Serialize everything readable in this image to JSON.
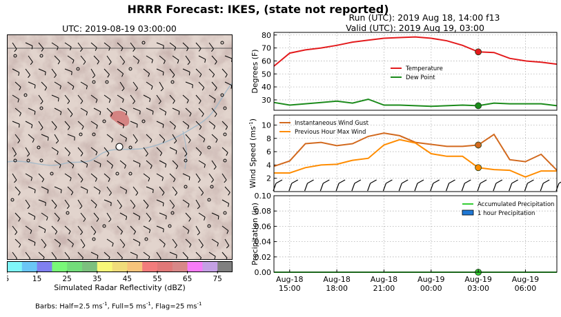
{
  "figure": {
    "suptitle": "HRRR Forecast: IKES, (state not reported)",
    "run_line": "Run (UTC): 2019 Aug 18, 14:00 f13",
    "valid_line": "Valid (UTC): 2019 Aug 19, 03:00"
  },
  "map": {
    "title": "UTC: 2019-08-19 03:00:00",
    "colorbar_label": "Simulated Radar Reflectivity (dBZ)",
    "colorbar_ticks": [
      "5",
      "15",
      "25",
      "35",
      "45",
      "55",
      "65",
      "75"
    ],
    "colorbar_colors": [
      "#7ff6f9",
      "#6ac6f6",
      "#8080f0",
      "#78f878",
      "#72dc7a",
      "#7cc07e",
      "#f8f878",
      "#f0dc7a",
      "#f7c47b",
      "#f27c7c",
      "#e07878",
      "#d88888",
      "#f87cf8",
      "#c4a0e4",
      "#808080"
    ],
    "station_marker": "white-circle",
    "footer_prefix": "Barbs: Half=2.5 ms",
    "footer_mid": ", Full=5 ms",
    "footer_mid2": ", Flag=25 ms",
    "footer_exp": "-1"
  },
  "chart_data": [
    {
      "type": "line",
      "ylabel": "Degrees (F)",
      "ylim": [
        22,
        82
      ],
      "yticks": [
        "30",
        "40",
        "50",
        "60",
        "70",
        "80"
      ],
      "grid": true,
      "legend_position": "center",
      "x": [
        "Aug-18 14:00",
        "Aug-18 15:00",
        "Aug-18 16:00",
        "Aug-18 17:00",
        "Aug-18 18:00",
        "Aug-18 19:00",
        "Aug-18 20:00",
        "Aug-18 21:00",
        "Aug-18 22:00",
        "Aug-18 23:00",
        "Aug-19 00:00",
        "Aug-19 01:00",
        "Aug-19 02:00",
        "Aug-19 03:00",
        "Aug-19 04:00",
        "Aug-19 05:00",
        "Aug-19 06:00",
        "Aug-19 07:00",
        "Aug-19 08:00"
      ],
      "series": [
        {
          "name": "Temperature",
          "color": "#e31a1c",
          "values": [
            56,
            66,
            68.5,
            70,
            72,
            74.5,
            76,
            77.5,
            78,
            78.5,
            77.5,
            75.5,
            72,
            67,
            66.5,
            62,
            60,
            59,
            57.5
          ]
        },
        {
          "name": "Dew Point",
          "color": "#1a8a1a",
          "values": [
            28,
            26,
            27,
            28,
            29,
            27.5,
            30.5,
            26,
            26,
            25.5,
            25,
            25.5,
            26,
            25.5,
            27.5,
            27,
            27,
            27,
            25.5
          ]
        }
      ],
      "highlight_x": "Aug-19 03:00"
    },
    {
      "type": "line",
      "ylabel": "Wind Speed (ms",
      "ylabel_exp": "-1",
      "ylim": [
        0,
        11.5
      ],
      "yticks": [
        "2",
        "4",
        "6",
        "8",
        "10"
      ],
      "grid": true,
      "legend_position": "top-left",
      "x": [
        "Aug-18 14:00",
        "Aug-18 15:00",
        "Aug-18 16:00",
        "Aug-18 17:00",
        "Aug-18 18:00",
        "Aug-18 19:00",
        "Aug-18 20:00",
        "Aug-18 21:00",
        "Aug-18 22:00",
        "Aug-18 23:00",
        "Aug-19 00:00",
        "Aug-19 01:00",
        "Aug-19 02:00",
        "Aug-19 03:00",
        "Aug-19 04:00",
        "Aug-19 05:00",
        "Aug-19 06:00",
        "Aug-19 07:00",
        "Aug-19 08:00"
      ],
      "series": [
        {
          "name": "Instantaneous Wind Gust",
          "color": "#d2691e",
          "values": [
            3.8,
            4.6,
            7.2,
            7.4,
            6.9,
            7.2,
            8.3,
            8.8,
            8.4,
            7.4,
            7.1,
            6.8,
            6.8,
            7.0,
            8.6,
            4.8,
            4.5,
            5.6,
            3.2
          ]
        },
        {
          "name": "Previous Hour Max Wind",
          "color": "#ff8c00",
          "values": [
            2.8,
            2.8,
            3.6,
            4.0,
            4.1,
            4.7,
            5.0,
            7.0,
            7.8,
            7.3,
            5.7,
            5.3,
            5.3,
            3.6,
            3.3,
            3.2,
            2.2,
            3.1,
            3.1
          ]
        }
      ],
      "barbs": "wind barbs along the bottom of the panel",
      "highlight_x": "Aug-19 03:00"
    },
    {
      "type": "line",
      "ylabel": "Precipitation (in)",
      "ylim": [
        0,
        0.1
      ],
      "yticks": [
        "0.00",
        "0.02",
        "0.04",
        "0.06",
        "0.08",
        "0.10"
      ],
      "grid": true,
      "legend_position": "top-right",
      "x": [
        "Aug-18 14:00",
        "Aug-18 15:00",
        "Aug-18 16:00",
        "Aug-18 17:00",
        "Aug-18 18:00",
        "Aug-18 19:00",
        "Aug-18 20:00",
        "Aug-18 21:00",
        "Aug-18 22:00",
        "Aug-18 23:00",
        "Aug-19 00:00",
        "Aug-19 01:00",
        "Aug-19 02:00",
        "Aug-19 03:00",
        "Aug-19 04:00",
        "Aug-19 05:00",
        "Aug-19 06:00",
        "Aug-19 07:00",
        "Aug-19 08:00"
      ],
      "series": [
        {
          "name": "Accumulated Precipitation",
          "color": "#33cc33",
          "values": [
            0,
            0,
            0,
            0,
            0,
            0,
            0,
            0,
            0,
            0,
            0,
            0,
            0,
            0,
            0,
            0,
            0,
            0,
            0
          ]
        },
        {
          "name": "1 hour Precipitation",
          "color": "#1f77d4",
          "values": [
            0,
            0,
            0,
            0,
            0,
            0,
            0,
            0,
            0,
            0,
            0,
            0,
            0,
            0,
            0,
            0,
            0,
            0,
            0
          ]
        }
      ],
      "highlight_x": "Aug-19 03:00"
    }
  ],
  "x_axis": {
    "tick_labels": [
      {
        "line1": "Aug-18",
        "line2": "15:00",
        "x_index": 1
      },
      {
        "line1": "Aug-18",
        "line2": "18:00",
        "x_index": 4
      },
      {
        "line1": "Aug-18",
        "line2": "21:00",
        "x_index": 7
      },
      {
        "line1": "Aug-19",
        "line2": "00:00",
        "x_index": 10
      },
      {
        "line1": "Aug-19",
        "line2": "03:00",
        "x_index": 13
      },
      {
        "line1": "Aug-19",
        "line2": "06:00",
        "x_index": 16
      }
    ]
  }
}
